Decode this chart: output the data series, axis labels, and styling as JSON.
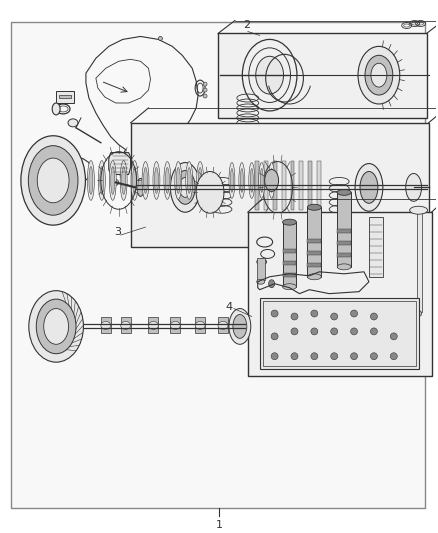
{
  "background_color": "#ffffff",
  "border_color": "#444444",
  "figure_width": 4.38,
  "figure_height": 5.33,
  "dpi": 100,
  "line_color": "#333333",
  "light_gray": "#e8e8e8",
  "med_gray": "#c0c0c0",
  "dark_gray": "#888888",
  "box_bg": "#f0f0f0"
}
